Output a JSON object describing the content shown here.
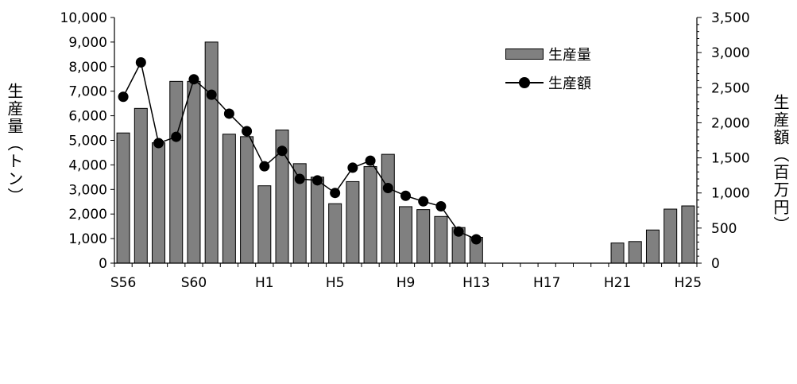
{
  "chart_data": {
    "type": "bar",
    "categories": [
      "S56",
      "S57",
      "S58",
      "S59",
      "S60",
      "S61",
      "S62",
      "S63",
      "H1",
      "H2",
      "H3",
      "H4",
      "H5",
      "H6",
      "H7",
      "H8",
      "H9",
      "H10",
      "H11",
      "H12",
      "H13",
      "H14",
      "H15",
      "H16",
      "H17",
      "H18",
      "H19",
      "H20",
      "H21",
      "H22",
      "H23",
      "H24",
      "H25"
    ],
    "x_tick_labels": [
      "S56",
      "S60",
      "H1",
      "H5",
      "H9",
      "H13",
      "H17",
      "H21",
      "H25"
    ],
    "series": [
      {
        "name": "生産量",
        "type": "bar",
        "axis": "left",
        "values": [
          5300,
          6300,
          4900,
          7400,
          7400,
          9000,
          5250,
          5150,
          3150,
          5420,
          4050,
          3500,
          2420,
          3320,
          3930,
          4430,
          2300,
          2180,
          1900,
          1450,
          1050,
          null,
          null,
          null,
          null,
          null,
          null,
          null,
          820,
          880,
          1350,
          2200,
          2330
        ]
      },
      {
        "name": "生産額",
        "type": "line",
        "axis": "right",
        "values": [
          2370,
          2860,
          1710,
          1800,
          2620,
          2400,
          2130,
          1880,
          1380,
          1600,
          1200,
          1180,
          1000,
          1360,
          1460,
          1070,
          960,
          880,
          810,
          450,
          340,
          null,
          null,
          null,
          null,
          null,
          null,
          null,
          null,
          null,
          null,
          null,
          null
        ]
      }
    ],
    "ylabel": "生産量（トン）",
    "y2label": "生産額（百万円）",
    "ylim": [
      0,
      10000
    ],
    "y2lim": [
      0,
      3500
    ],
    "y_ticks": [
      "10,000",
      "9,000",
      "8,000",
      "7,000",
      "6,000",
      "5,000",
      "4,000",
      "3,000",
      "2,000",
      "1,000",
      "0"
    ],
    "y2_ticks": [
      "3,500",
      "3,000",
      "2,500",
      "2,000",
      "1,500",
      "1,000",
      "500",
      "0"
    ],
    "grid": false,
    "legend_position": "top-right",
    "colors": {
      "bar": "#808080",
      "bar_stroke": "#000000",
      "line": "#000000"
    }
  }
}
